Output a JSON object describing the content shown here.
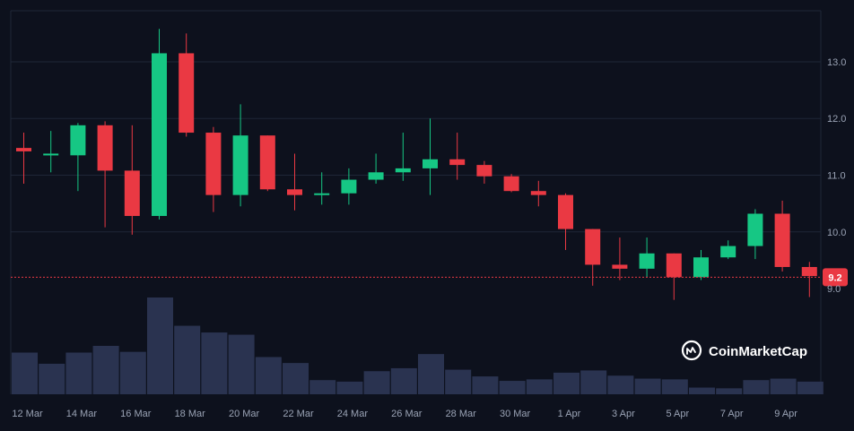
{
  "brand": {
    "name": "CoinMarketCap",
    "icon": "coinmarketcap-logo-icon"
  },
  "colors": {
    "background": "#0d111d",
    "grid": "#1f2637",
    "up": "#16c784",
    "down": "#ea3943",
    "volume": "#2a3350",
    "axis_text": "#9aa3b5",
    "current_price": "#ea3943"
  },
  "chart_data": {
    "type": "candlestick",
    "x": [
      "12 Mar",
      "13 Mar",
      "14 Mar",
      "15 Mar",
      "16 Mar",
      "17 Mar",
      "18 Mar",
      "19 Mar",
      "20 Mar",
      "21 Mar",
      "22 Mar",
      "23 Mar",
      "24 Mar",
      "25 Mar",
      "26 Mar",
      "27 Mar",
      "28 Mar",
      "29 Mar",
      "30 Mar",
      "31 Mar",
      "1 Apr",
      "2 Apr",
      "3 Apr",
      "4 Apr",
      "5 Apr",
      "6 Apr",
      "7 Apr",
      "8 Apr",
      "9 Apr",
      "10 Apr"
    ],
    "x_tick_labels": [
      "12 Mar",
      "14 Mar",
      "16 Mar",
      "18 Mar",
      "20 Mar",
      "22 Mar",
      "24 Mar",
      "26 Mar",
      "28 Mar",
      "30 Mar",
      "1 Apr",
      "3 Apr",
      "5 Apr",
      "7 Apr",
      "9 Apr"
    ],
    "open": [
      11.48,
      11.38,
      11.35,
      11.88,
      11.08,
      10.28,
      13.15,
      11.75,
      10.65,
      11.7,
      10.75,
      10.65,
      10.68,
      10.92,
      11.05,
      11.12,
      11.28,
      11.18,
      10.98,
      10.72,
      10.65,
      10.05,
      9.42,
      9.35,
      9.62,
      9.2,
      9.55,
      9.75,
      10.32,
      9.38
    ],
    "high": [
      11.75,
      11.78,
      11.92,
      11.95,
      11.88,
      13.58,
      13.5,
      11.85,
      12.25,
      11.7,
      11.38,
      11.05,
      11.12,
      11.38,
      11.75,
      12.0,
      11.75,
      11.25,
      11.02,
      10.9,
      10.68,
      10.05,
      9.9,
      9.9,
      9.62,
      9.68,
      9.85,
      10.4,
      10.55,
      9.47
    ],
    "low": [
      10.85,
      11.05,
      10.72,
      10.08,
      9.95,
      10.22,
      11.68,
      10.35,
      10.45,
      10.72,
      10.38,
      10.48,
      10.48,
      10.85,
      10.9,
      10.65,
      10.92,
      10.85,
      10.7,
      10.45,
      9.68,
      9.05,
      9.15,
      9.2,
      8.8,
      9.15,
      9.52,
      9.52,
      9.3,
      8.85
    ],
    "close": [
      11.42,
      11.38,
      11.88,
      11.08,
      10.28,
      13.15,
      11.75,
      10.65,
      11.7,
      10.75,
      10.65,
      10.68,
      10.92,
      11.05,
      11.12,
      11.28,
      11.18,
      10.98,
      10.72,
      10.65,
      10.05,
      9.42,
      9.35,
      9.62,
      9.2,
      9.55,
      9.75,
      10.32,
      9.38,
      9.22
    ],
    "volume": [
      56,
      41,
      56,
      65,
      57,
      130,
      92,
      83,
      80,
      50,
      42,
      19,
      17,
      31,
      35,
      54,
      33,
      24,
      18,
      20,
      29,
      32,
      25,
      21,
      20,
      9,
      8,
      19,
      21,
      17
    ],
    "y_ticks": [
      "9.0",
      "10.0",
      "11.0",
      "12.0",
      "13.0"
    ],
    "ylim": [
      8.7,
      13.9
    ],
    "current_price": 9.2,
    "current_price_label": "9.2",
    "grid": true
  }
}
